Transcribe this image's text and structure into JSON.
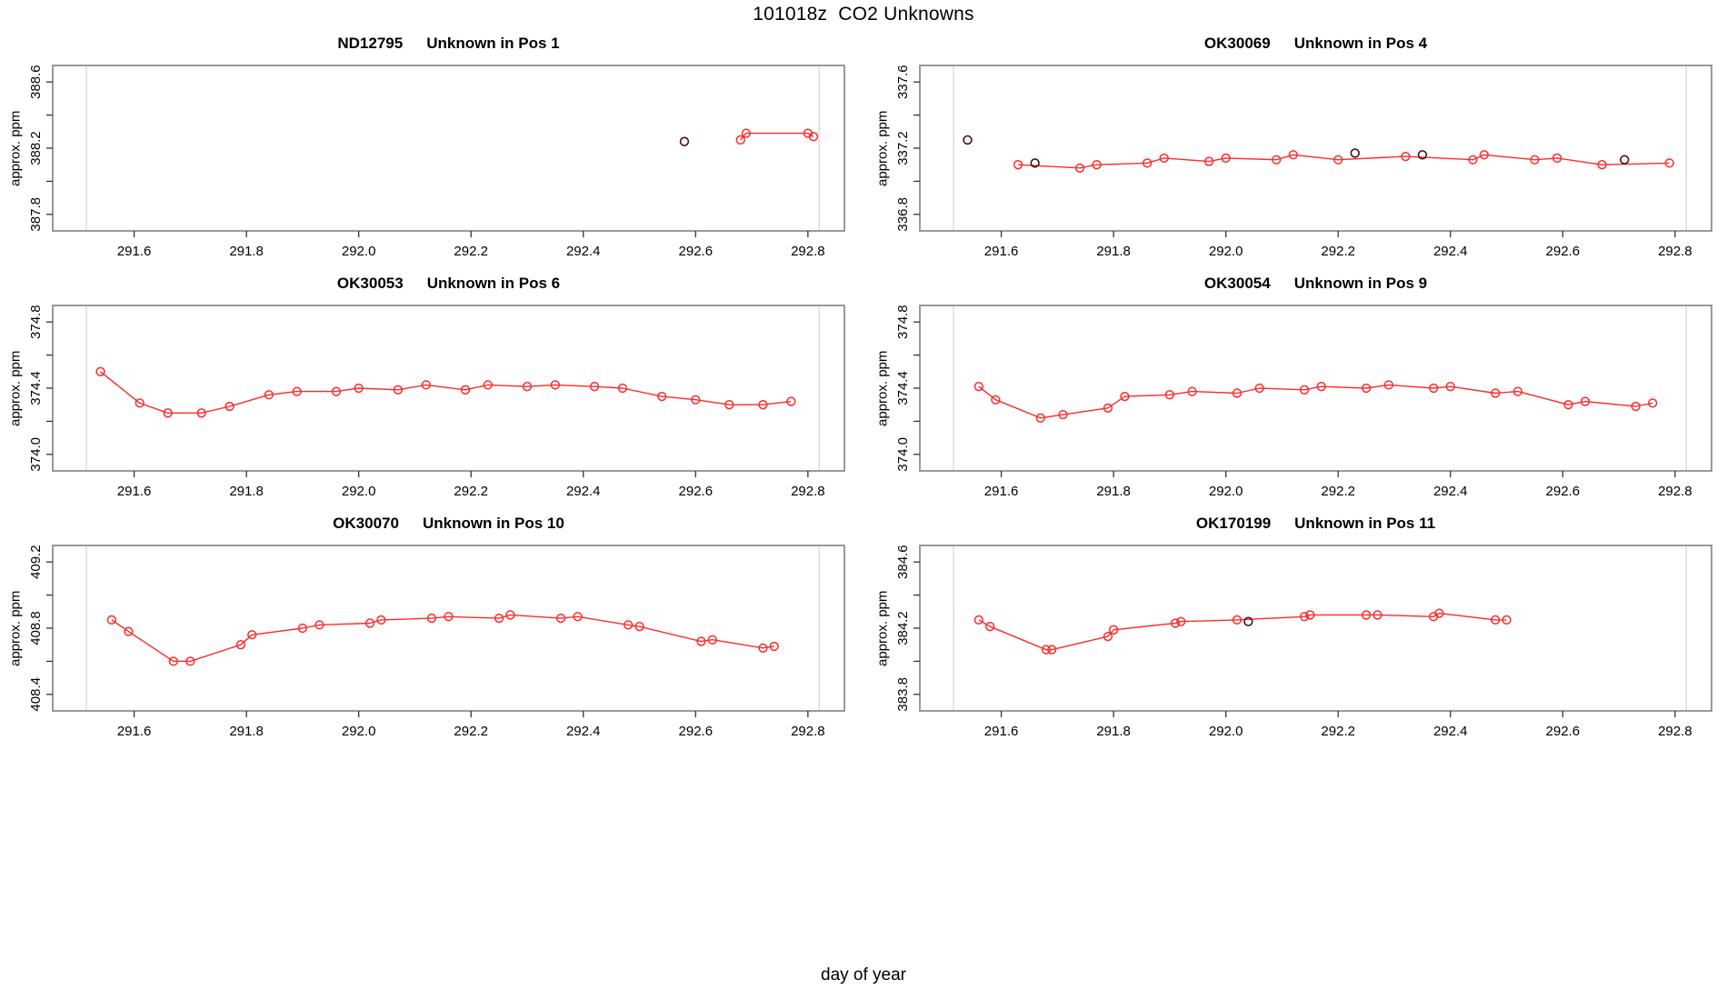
{
  "title": "101018z  CO2 Unknowns",
  "xlabel": "day of year",
  "ylabel": "approx. ppm",
  "colors": {
    "red_series": "#ff2a2a",
    "black_point": "#470f0f",
    "vline_gray": "#d9d9d9",
    "box_border": "#808080",
    "tick": "#333333",
    "text": "#000000"
  },
  "chart_data": [
    {
      "type": "line",
      "title_sample": "ND12795",
      "title_label": "Unknown in Pos 1",
      "xlim": [
        291.455,
        292.865
      ],
      "ylim": [
        387.7,
        388.7
      ],
      "xticks": [
        291.6,
        291.8,
        292.0,
        292.2,
        292.4,
        292.6,
        292.8
      ],
      "xtick_labels": [
        "291.6",
        "291.8",
        "292.0",
        "292.2",
        "292.4",
        "292.6",
        "292.8"
      ],
      "yticks_labeled": [
        {
          "v": 387.8,
          "label": "387.8"
        },
        {
          "v": 388.2,
          "label": "388.2"
        },
        {
          "v": 388.6,
          "label": "388.6"
        }
      ],
      "yticks_minor": [
        388.0,
        388.4
      ],
      "vlines": [
        291.515,
        292.82
      ],
      "red_points": [
        [
          292.68,
          388.25
        ],
        [
          292.69,
          388.29
        ],
        [
          292.8,
          388.29
        ],
        [
          292.81,
          388.27
        ]
      ],
      "black_points": [
        [
          292.58,
          388.24
        ]
      ]
    },
    {
      "type": "line",
      "title_sample": "OK30069",
      "title_label": "Unknown in Pos 4",
      "xlim": [
        291.455,
        292.865
      ],
      "ylim": [
        336.7,
        337.7
      ],
      "xticks": [
        291.6,
        291.8,
        292.0,
        292.2,
        292.4,
        292.6,
        292.8
      ],
      "xtick_labels": [
        "291.6",
        "291.8",
        "292.0",
        "292.2",
        "292.4",
        "292.6",
        "292.8"
      ],
      "yticks_labeled": [
        {
          "v": 336.8,
          "label": "336.8"
        },
        {
          "v": 337.2,
          "label": "337.2"
        },
        {
          "v": 337.6,
          "label": "337.6"
        }
      ],
      "yticks_minor": [
        337.0,
        337.4
      ],
      "vlines": [
        291.515,
        292.82
      ],
      "red_points": [
        [
          291.63,
          337.1
        ],
        [
          291.74,
          337.08
        ],
        [
          291.77,
          337.1
        ],
        [
          291.86,
          337.11
        ],
        [
          291.89,
          337.14
        ],
        [
          291.97,
          337.12
        ],
        [
          292.0,
          337.14
        ],
        [
          292.09,
          337.13
        ],
        [
          292.12,
          337.16
        ],
        [
          292.2,
          337.13
        ],
        [
          292.32,
          337.15
        ],
        [
          292.44,
          337.13
        ],
        [
          292.46,
          337.16
        ],
        [
          292.55,
          337.13
        ],
        [
          292.59,
          337.14
        ],
        [
          292.67,
          337.1
        ],
        [
          292.79,
          337.11
        ]
      ],
      "black_points": [
        [
          291.54,
          337.25
        ],
        [
          291.66,
          337.11
        ],
        [
          292.23,
          337.17
        ],
        [
          292.35,
          337.16
        ],
        [
          292.71,
          337.13
        ]
      ]
    },
    {
      "type": "line",
      "title_sample": "OK30053",
      "title_label": "Unknown in Pos 6",
      "xlim": [
        291.455,
        292.865
      ],
      "ylim": [
        373.9,
        374.9
      ],
      "xticks": [
        291.6,
        291.8,
        292.0,
        292.2,
        292.4,
        292.6,
        292.8
      ],
      "xtick_labels": [
        "291.6",
        "291.8",
        "292.0",
        "292.2",
        "292.4",
        "292.6",
        "292.8"
      ],
      "yticks_labeled": [
        {
          "v": 374.0,
          "label": "374.0"
        },
        {
          "v": 374.4,
          "label": "374.4"
        },
        {
          "v": 374.8,
          "label": "374.8"
        }
      ],
      "yticks_minor": [
        374.2,
        374.6
      ],
      "vlines": [
        291.515,
        292.82
      ],
      "red_points": [
        [
          291.54,
          374.5
        ],
        [
          291.61,
          374.31
        ],
        [
          291.66,
          374.25
        ],
        [
          291.72,
          374.25
        ],
        [
          291.77,
          374.29
        ],
        [
          291.84,
          374.36
        ],
        [
          291.89,
          374.38
        ],
        [
          291.96,
          374.38
        ],
        [
          292.0,
          374.4
        ],
        [
          292.07,
          374.39
        ],
        [
          292.12,
          374.42
        ],
        [
          292.19,
          374.39
        ],
        [
          292.23,
          374.42
        ],
        [
          292.3,
          374.41
        ],
        [
          292.35,
          374.42
        ],
        [
          292.42,
          374.41
        ],
        [
          292.47,
          374.4
        ],
        [
          292.54,
          374.35
        ],
        [
          292.6,
          374.33
        ],
        [
          292.66,
          374.3
        ],
        [
          292.72,
          374.3
        ],
        [
          292.77,
          374.32
        ]
      ],
      "black_points": []
    },
    {
      "type": "line",
      "title_sample": "OK30054",
      "title_label": "Unknown in Pos 9",
      "xlim": [
        291.455,
        292.865
      ],
      "ylim": [
        373.9,
        374.9
      ],
      "xticks": [
        291.6,
        291.8,
        292.0,
        292.2,
        292.4,
        292.6,
        292.8
      ],
      "xtick_labels": [
        "291.6",
        "291.8",
        "292.0",
        "292.2",
        "292.4",
        "292.6",
        "292.8"
      ],
      "yticks_labeled": [
        {
          "v": 374.0,
          "label": "374.0"
        },
        {
          "v": 374.4,
          "label": "374.4"
        },
        {
          "v": 374.8,
          "label": "374.8"
        }
      ],
      "yticks_minor": [
        374.2,
        374.6
      ],
      "vlines": [
        291.515,
        292.82
      ],
      "red_points": [
        [
          291.56,
          374.41
        ],
        [
          291.59,
          374.33
        ],
        [
          291.67,
          374.22
        ],
        [
          291.71,
          374.24
        ],
        [
          291.79,
          374.28
        ],
        [
          291.82,
          374.35
        ],
        [
          291.9,
          374.36
        ],
        [
          291.94,
          374.38
        ],
        [
          292.02,
          374.37
        ],
        [
          292.06,
          374.4
        ],
        [
          292.14,
          374.39
        ],
        [
          292.17,
          374.41
        ],
        [
          292.25,
          374.4
        ],
        [
          292.29,
          374.42
        ],
        [
          292.37,
          374.4
        ],
        [
          292.4,
          374.41
        ],
        [
          292.48,
          374.37
        ],
        [
          292.52,
          374.38
        ],
        [
          292.61,
          374.3
        ],
        [
          292.64,
          374.32
        ],
        [
          292.73,
          374.29
        ],
        [
          292.76,
          374.31
        ]
      ],
      "black_points": []
    },
    {
      "type": "line",
      "title_sample": "OK30070",
      "title_label": "Unknown in Pos 10",
      "xlim": [
        291.455,
        292.865
      ],
      "ylim": [
        408.3,
        409.3
      ],
      "xticks": [
        291.6,
        291.8,
        292.0,
        292.2,
        292.4,
        292.6,
        292.8
      ],
      "xtick_labels": [
        "291.6",
        "291.8",
        "292.0",
        "292.2",
        "292.4",
        "292.6",
        "292.8"
      ],
      "yticks_labeled": [
        {
          "v": 408.4,
          "label": "408.4"
        },
        {
          "v": 408.8,
          "label": "408.8"
        },
        {
          "v": 409.2,
          "label": "409.2"
        }
      ],
      "yticks_minor": [
        408.6,
        409.0
      ],
      "vlines": [
        291.515,
        292.82
      ],
      "red_points": [
        [
          291.56,
          408.85
        ],
        [
          291.59,
          408.78
        ],
        [
          291.67,
          408.6
        ],
        [
          291.7,
          408.6
        ],
        [
          291.79,
          408.7
        ],
        [
          291.81,
          408.76
        ],
        [
          291.9,
          408.8
        ],
        [
          291.93,
          408.82
        ],
        [
          292.02,
          408.83
        ],
        [
          292.04,
          408.85
        ],
        [
          292.13,
          408.86
        ],
        [
          292.16,
          408.87
        ],
        [
          292.25,
          408.86
        ],
        [
          292.27,
          408.88
        ],
        [
          292.36,
          408.86
        ],
        [
          292.39,
          408.87
        ],
        [
          292.48,
          408.82
        ],
        [
          292.5,
          408.81
        ],
        [
          292.61,
          408.72
        ],
        [
          292.63,
          408.73
        ],
        [
          292.72,
          408.68
        ],
        [
          292.74,
          408.69
        ]
      ],
      "black_points": []
    },
    {
      "type": "line",
      "title_sample": "OK170199",
      "title_label": "Unknown in Pos 11",
      "xlim": [
        291.455,
        292.865
      ],
      "ylim": [
        383.7,
        384.7
      ],
      "xticks": [
        291.6,
        291.8,
        292.0,
        292.2,
        292.4,
        292.6,
        292.8
      ],
      "xtick_labels": [
        "291.6",
        "291.8",
        "292.0",
        "292.2",
        "292.4",
        "292.6",
        "292.8"
      ],
      "yticks_labeled": [
        {
          "v": 383.8,
          "label": "383.8"
        },
        {
          "v": 384.2,
          "label": "384.2"
        },
        {
          "v": 384.6,
          "label": "384.6"
        }
      ],
      "yticks_minor": [
        384.0,
        384.4
      ],
      "vlines": [
        291.515,
        292.82
      ],
      "red_points": [
        [
          291.56,
          384.25
        ],
        [
          291.58,
          384.21
        ],
        [
          291.68,
          384.07
        ],
        [
          291.69,
          384.07
        ],
        [
          291.79,
          384.15
        ],
        [
          291.8,
          384.19
        ],
        [
          291.91,
          384.23
        ],
        [
          291.92,
          384.24
        ],
        [
          292.02,
          384.25
        ],
        [
          292.14,
          384.27
        ],
        [
          292.15,
          384.28
        ],
        [
          292.25,
          384.28
        ],
        [
          292.27,
          384.28
        ],
        [
          292.37,
          384.27
        ],
        [
          292.38,
          384.29
        ],
        [
          292.48,
          384.25
        ],
        [
          292.5,
          384.25
        ]
      ],
      "black_points": [
        [
          292.04,
          384.24
        ]
      ]
    }
  ]
}
